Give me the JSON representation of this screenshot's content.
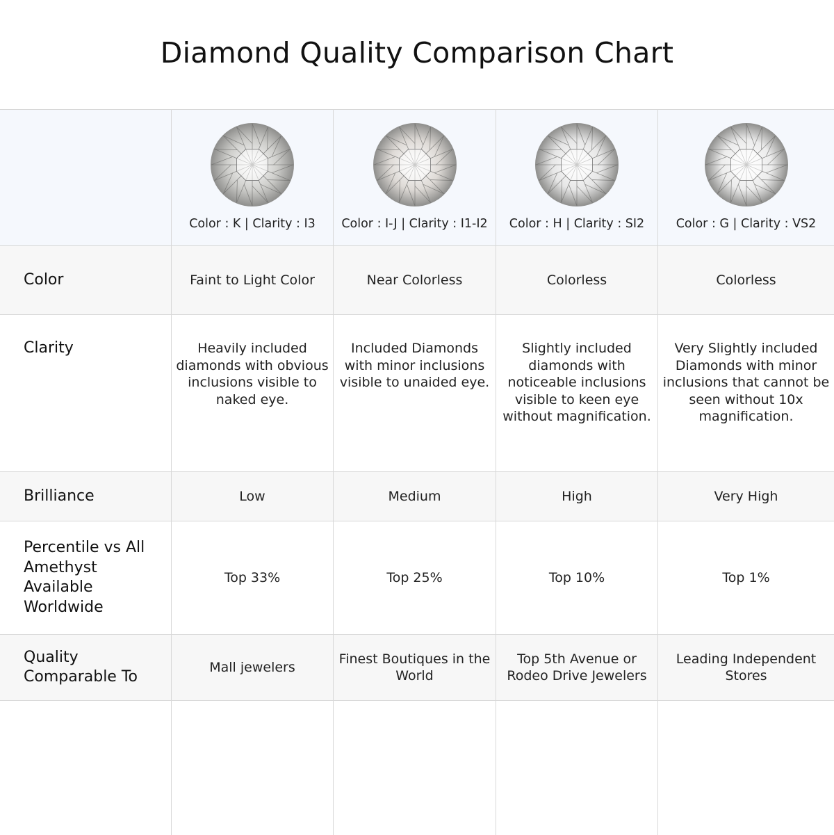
{
  "title": "Diamond Quality Comparison Chart",
  "columns": [
    {
      "caption": "Color : K | Clarity : I3",
      "tint": "#cfcfcc"
    },
    {
      "caption": "Color : I-J | Clarity : I1-I2",
      "tint": "#dedad6"
    },
    {
      "caption": "Color : H | Clarity : SI2",
      "tint": "#e6e6e6"
    },
    {
      "caption": "Color : G | Clarity : VS2",
      "tint": "#ececec"
    }
  ],
  "rows": [
    {
      "label": "Color",
      "values": [
        "Faint to Light Color",
        "Near Colorless",
        "Colorless",
        "Colorless"
      ]
    },
    {
      "label": "Clarity",
      "values": [
        "Heavily included diamonds with obvious inclusions visible to naked eye.",
        "Included Diamonds with minor inclusions visible to unaided eye.",
        "Slightly included diamonds with noticeable inclusions visible to keen eye without magnification.",
        "Very Slightly included Diamonds with minor inclusions that cannot be seen without 10x magnification."
      ]
    },
    {
      "label": "Brilliance",
      "values": [
        "Low",
        "Medium",
        "High",
        "Very High"
      ]
    },
    {
      "label": "Percentile vs All Amethyst Available Worldwide",
      "values": [
        "Top 33%",
        "Top 25%",
        "Top 10%",
        "Top 1%"
      ]
    },
    {
      "label": "Quality Comparable To",
      "values": [
        "Mall jewelers",
        "Finest Boutiques in the World",
        "Top 5th Avenue or Rodeo Drive Jewelers",
        "Leading Independent Stores"
      ]
    }
  ]
}
